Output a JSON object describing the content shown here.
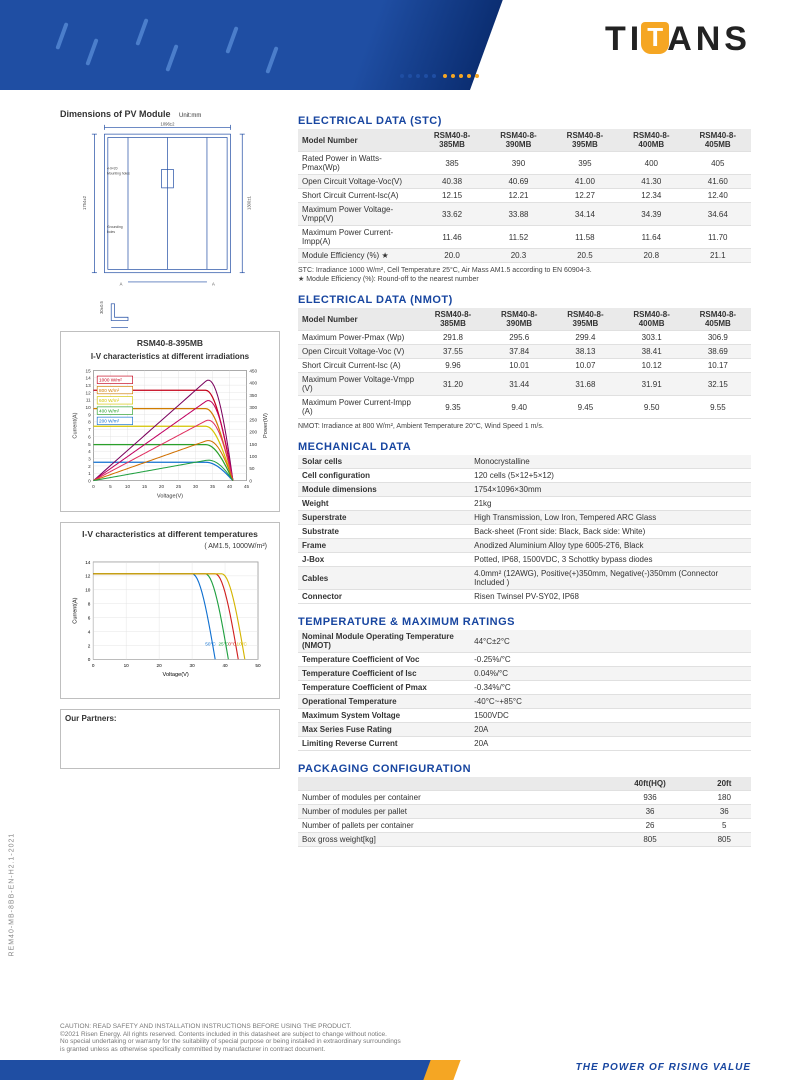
{
  "brand": {
    "logo_text_left": "TI",
    "logo_text_right": "ANS"
  },
  "tagline": "THE POWER OF RISING VALUE",
  "side_code": "REM40-MB-8BB-EN-H2.1-2021",
  "left": {
    "dim_title": "Dimensions of PV Module",
    "dim_unit": "Unit:mm",
    "chart1_title": "RSM40-8-395MB",
    "chart1_sub": "I-V characteristics at different irradiations",
    "chart2_title": "I-V characteristics at different temperatures",
    "chart2_sub": "( AM1.5,  1000W/m²)",
    "partners_label": "Our Partners:"
  },
  "chart1": {
    "x_label": "Voltage(V)",
    "y_label": "Current(A)",
    "y2_label": "Power(W)",
    "xlim": [
      0,
      45
    ],
    "y1lim": [
      0,
      15
    ],
    "y2lim": [
      0,
      450
    ],
    "xticks": [
      0,
      5,
      10,
      15,
      20,
      25,
      30,
      35,
      40,
      45
    ],
    "y1ticks": [
      0,
      1,
      2,
      3,
      4,
      5,
      6,
      7,
      8,
      9,
      10,
      11,
      12,
      13,
      14,
      15
    ],
    "y2ticks": [
      0,
      50,
      100,
      150,
      200,
      250,
      300,
      350,
      400,
      450
    ],
    "series": [
      {
        "label": "1000 W/m²",
        "color": "#c40018"
      },
      {
        "label": "800 W/m²",
        "color": "#d07c00"
      },
      {
        "label": "600 W/m²",
        "color": "#d4c400"
      },
      {
        "label": "400 W/m²",
        "color": "#2aa02a"
      },
      {
        "label": "200 W/m²",
        "color": "#1070d0"
      }
    ],
    "power_colors": [
      "#7a005c",
      "#c00060",
      "#e03060",
      "#d07000",
      "#20a040"
    ]
  },
  "chart2": {
    "x_label": "Voltage(V)",
    "y_label": "Current(A)",
    "xlim": [
      0,
      50
    ],
    "ylim": [
      0,
      14
    ],
    "xticks": [
      0,
      10,
      20,
      30,
      40,
      50
    ],
    "yticks": [
      0,
      2,
      4,
      6,
      8,
      10,
      12,
      14
    ],
    "series": [
      {
        "label": "50°C",
        "color": "#1070d0"
      },
      {
        "label": "25°C",
        "color": "#20a040"
      },
      {
        "label": "0°C",
        "color": "#d02020"
      },
      {
        "label": "-10°C",
        "color": "#d4b400"
      }
    ]
  },
  "stc": {
    "title": "ELECTRICAL DATA (STC)",
    "headers": [
      "Model Number",
      "RSM40-8-385MB",
      "RSM40-8-390MB",
      "RSM40-8-395MB",
      "RSM40-8-400MB",
      "RSM40-8-405MB"
    ],
    "rows": [
      [
        "Rated Power in Watts-Pmax(Wp)",
        "385",
        "390",
        "395",
        "400",
        "405"
      ],
      [
        "Open Circuit Voltage-Voc(V)",
        "40.38",
        "40.69",
        "41.00",
        "41.30",
        "41.60"
      ],
      [
        "Short Circuit Current-Isc(A)",
        "12.15",
        "12.21",
        "12.27",
        "12.34",
        "12.40"
      ],
      [
        "Maximum Power Voltage-Vmpp(V)",
        "33.62",
        "33.88",
        "34.14",
        "34.39",
        "34.64"
      ],
      [
        "Maximum Power Current-Impp(A)",
        "11.46",
        "11.52",
        "11.58",
        "11.64",
        "11.70"
      ],
      [
        "Module Efficiency (%)  ★",
        "20.0",
        "20.3",
        "20.5",
        "20.8",
        "21.1"
      ]
    ],
    "note": "STC: Irradiance 1000 W/m², Cell Temperature 25°C, Air Mass AM1.5 according to EN 60904-3.\n★ Module Efficiency (%): Round-off to the nearest number"
  },
  "nmot": {
    "title": "ELECTRICAL DATA (NMOT)",
    "headers": [
      "Model Number",
      "RSM40-8-385MB",
      "RSM40-8-390MB",
      "RSM40-8-395MB",
      "RSM40-8-400MB",
      "RSM40-8-405MB"
    ],
    "rows": [
      [
        "Maximum Power-Pmax (Wp)",
        "291.8",
        "295.6",
        "299.4",
        "303.1",
        "306.9"
      ],
      [
        "Open Circuit Voltage-Voc (V)",
        "37.55",
        "37.84",
        "38.13",
        "38.41",
        "38.69"
      ],
      [
        "Short Circuit Current-Isc (A)",
        "9.96",
        "10.01",
        "10.07",
        "10.12",
        "10.17"
      ],
      [
        "Maximum Power Voltage-Vmpp (V)",
        "31.20",
        "31.44",
        "31.68",
        "31.91",
        "32.15"
      ],
      [
        "Maximum Power Current-Impp (A)",
        "9.35",
        "9.40",
        "9.45",
        "9.50",
        "9.55"
      ]
    ],
    "note": "NMOT: Irradiance at 800 W/m², Ambient Temperature 20°C, Wind Speed 1 m/s."
  },
  "mech": {
    "title": "MECHANICAL DATA",
    "rows": [
      [
        "Solar cells",
        "Monocrystalline"
      ],
      [
        "Cell configuration",
        "120 cells (5×12+5×12)"
      ],
      [
        "Module dimensions",
        "1754×1096×30mm"
      ],
      [
        "Weight",
        "21kg"
      ],
      [
        "Superstrate",
        "High Transmission, Low Iron, Tempered ARC Glass"
      ],
      [
        "Substrate",
        "Back-sheet (Front side: Black, Back side: White)"
      ],
      [
        "Frame",
        "Anodized Aluminium Alloy type 6005-2T6, Black"
      ],
      [
        "J-Box",
        "Potted, IP68, 1500VDC, 3 Schottky bypass diodes"
      ],
      [
        "Cables",
        "4.0mm² (12AWG), Positive(+)350mm, Negative(-)350mm (Connector Included )"
      ],
      [
        "Connector",
        "Risen Twinsel PV-SY02, IP68"
      ]
    ]
  },
  "temp": {
    "title": "TEMPERATURE & MAXIMUM RATINGS",
    "rows": [
      [
        "Nominal Module Operating Temperature (NMOT)",
        "44°C±2°C"
      ],
      [
        "Temperature Coefficient of Voc",
        "-0.25%/°C"
      ],
      [
        "Temperature Coefficient of Isc",
        "0.04%/°C"
      ],
      [
        "Temperature Coefficient of Pmax",
        "-0.34%/°C"
      ],
      [
        "Operational Temperature",
        "-40°C~+85°C"
      ],
      [
        "Maximum System Voltage",
        "1500VDC"
      ],
      [
        "Max Series Fuse Rating",
        "20A"
      ],
      [
        "Limiting Reverse Current",
        "20A"
      ]
    ]
  },
  "pack": {
    "title": "PACKAGING CONFIGURATION",
    "headers": [
      "",
      "40ft(HQ)",
      "20ft"
    ],
    "rows": [
      [
        "Number of modules per container",
        "936",
        "180"
      ],
      [
        "Number of modules per pallet",
        "36",
        "36"
      ],
      [
        "Number of pallets per container",
        "26",
        "5"
      ],
      [
        "Box gross weight[kg]",
        "805",
        "805"
      ]
    ]
  },
  "caution": "CAUTION: READ SAFETY AND INSTALLATION INSTRUCTIONS BEFORE USING THE PRODUCT.\n©2021 Risen Energy. All rights reserved. Contents included in this datasheet are subject to change without notice.\nNo special undertaking or warranty for the suitability of special purpose or being installed in extraordinary surroundings\nis granted unless as otherwise specifically committed by manufacturer in contract document."
}
